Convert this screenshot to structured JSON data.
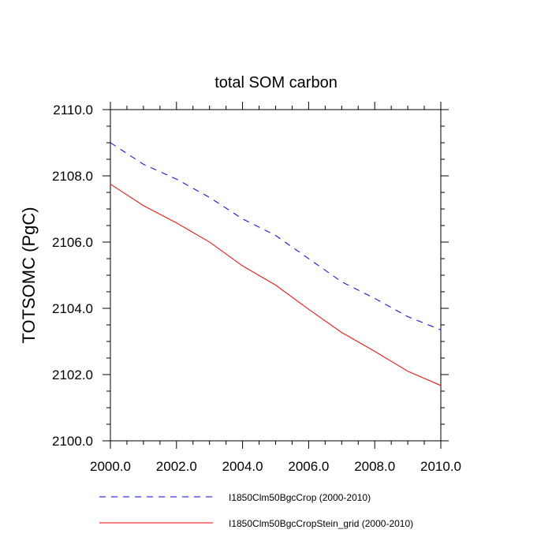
{
  "chart_data": {
    "type": "line",
    "title": "total SOM carbon",
    "xlabel": "",
    "ylabel": "TOTSOMC  (PgC)",
    "xlim": [
      2000,
      2010
    ],
    "ylim": [
      2100,
      2110
    ],
    "x": [
      2000,
      2001,
      2002,
      2003,
      2004,
      2005,
      2006,
      2007,
      2008,
      2009,
      2010
    ],
    "xticks": [
      "2000.0",
      "2002.0",
      "2004.0",
      "2006.0",
      "2008.0",
      "2010.0"
    ],
    "yticks": [
      "2100.0",
      "2102.0",
      "2104.0",
      "2106.0",
      "2108.0",
      "2110.0"
    ],
    "grid": false,
    "legend_position": "bottom",
    "series": [
      {
        "name": "I1850Clm50BgcCrop (2000-2010)",
        "color": "#0000ff",
        "dash": "dashed",
        "values": [
          2109.0,
          2108.35,
          2107.9,
          2107.35,
          2106.7,
          2106.2,
          2105.5,
          2104.8,
          2104.3,
          2103.75,
          2103.35
        ]
      },
      {
        "name": "I1850Clm50BgcCropStein_grid (2000-2010)",
        "color": "#ff0000",
        "dash": "solid",
        "values": [
          2107.75,
          2107.1,
          2106.58,
          2106.0,
          2105.28,
          2104.7,
          2103.97,
          2103.27,
          2102.7,
          2102.1,
          2101.67
        ]
      }
    ]
  }
}
